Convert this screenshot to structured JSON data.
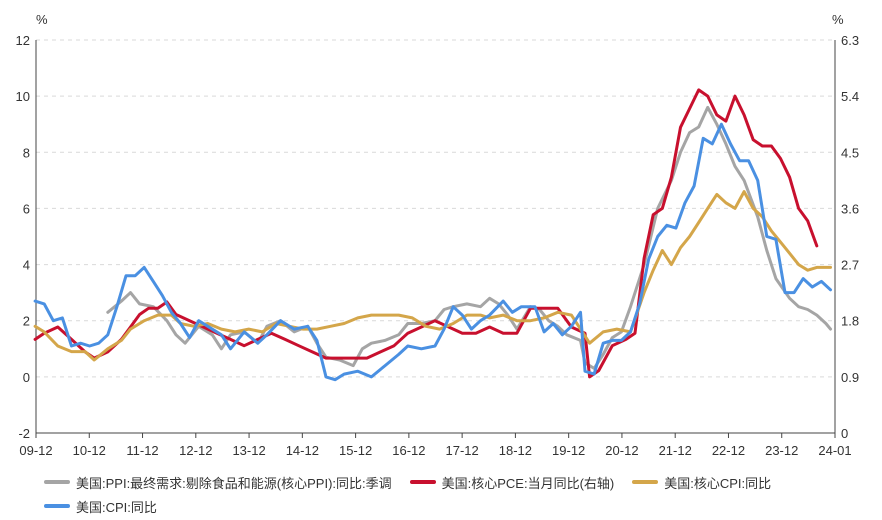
{
  "chart_data": {
    "type": "line",
    "y_left_unit": "%",
    "y_right_unit": "%",
    "y_left_ticks": [
      "-2",
      "0",
      "2",
      "4",
      "6",
      "8",
      "10",
      "12"
    ],
    "y_right_ticks": [
      "0",
      "0.9",
      "1.8",
      "2.7",
      "3.6",
      "4.5",
      "5.4",
      "6.3"
    ],
    "ylim_left": [
      -2,
      12
    ],
    "ylim_right": [
      0,
      6.3
    ],
    "x_ticks": [
      "09-12",
      "10-12",
      "11-12",
      "12-12",
      "13-12",
      "14-12",
      "15-12",
      "16-12",
      "17-12",
      "18-12",
      "19-12",
      "20-12",
      "21-12",
      "22-12",
      "23-12",
      "24-01"
    ],
    "grid": "horizontal dashed",
    "series": [
      {
        "name": "美国:PPI:最终需求:剔除食品和能源(核心PPI):同比:季调",
        "axis": "left",
        "color": "#a5a5a5",
        "points": [
          [
            2011.5,
            2.3
          ],
          [
            2011.8,
            2.7
          ],
          [
            2012.0,
            3.0
          ],
          [
            2012.2,
            2.6
          ],
          [
            2012.5,
            2.5
          ],
          [
            2012.8,
            2.0
          ],
          [
            2013.0,
            1.5
          ],
          [
            2013.2,
            1.2
          ],
          [
            2013.5,
            1.8
          ],
          [
            2013.8,
            1.5
          ],
          [
            2014.0,
            1.0
          ],
          [
            2014.2,
            1.5
          ],
          [
            2014.5,
            1.6
          ],
          [
            2014.8,
            1.2
          ],
          [
            2015.0,
            1.8
          ],
          [
            2015.3,
            2.0
          ],
          [
            2015.6,
            1.6
          ],
          [
            2015.9,
            1.8
          ],
          [
            2016.1,
            1.2
          ],
          [
            2016.3,
            0.7
          ],
          [
            2016.6,
            0.6
          ],
          [
            2016.9,
            0.4
          ],
          [
            2017.1,
            1.0
          ],
          [
            2017.3,
            1.2
          ],
          [
            2017.6,
            1.3
          ],
          [
            2017.9,
            1.5
          ],
          [
            2018.1,
            1.9
          ],
          [
            2018.4,
            1.9
          ],
          [
            2018.7,
            2.0
          ],
          [
            2018.9,
            2.4
          ],
          [
            2019.1,
            2.5
          ],
          [
            2019.4,
            2.6
          ],
          [
            2019.7,
            2.5
          ],
          [
            2019.9,
            2.8
          ],
          [
            2020.1,
            2.6
          ],
          [
            2020.3,
            2.2
          ],
          [
            2020.5,
            1.7
          ],
          [
            2020.8,
            2.5
          ],
          [
            2021.0,
            2.4
          ],
          [
            2021.2,
            2.0
          ],
          [
            2021.4,
            1.8
          ],
          [
            2021.6,
            1.5
          ],
          [
            2021.9,
            1.3
          ],
          [
            2022.0,
            0.5
          ],
          [
            2022.2,
            0.3
          ],
          [
            2022.4,
            0.8
          ],
          [
            2022.6,
            1.4
          ],
          [
            2022.8,
            1.6
          ],
          [
            2023.0,
            2.5
          ],
          [
            2023.3,
            4.0
          ],
          [
            2023.6,
            6.0
          ],
          [
            2023.9,
            7.0
          ],
          [
            2024.1,
            8.0
          ],
          [
            2024.3,
            8.7
          ],
          [
            2024.5,
            8.9
          ],
          [
            2024.7,
            9.6
          ],
          [
            2024.9,
            9.0
          ],
          [
            2025.1,
            8.3
          ],
          [
            2025.3,
            7.5
          ],
          [
            2025.5,
            7.0
          ],
          [
            2025.8,
            5.7
          ],
          [
            2026.0,
            4.5
          ],
          [
            2026.2,
            3.5
          ],
          [
            2026.5,
            2.8
          ],
          [
            2026.7,
            2.5
          ],
          [
            2026.9,
            2.4
          ],
          [
            2027.1,
            2.2
          ],
          [
            2027.3,
            1.9
          ],
          [
            2027.4,
            1.7
          ]
        ]
      },
      {
        "name": "美国:核心PCE:当月同比(右轴)",
        "axis": "right",
        "color": "#c8102e",
        "points": [
          [
            2009.9,
            1.5
          ],
          [
            2010.1,
            1.6
          ],
          [
            2010.4,
            1.7
          ],
          [
            2010.7,
            1.5
          ],
          [
            2011.0,
            1.3
          ],
          [
            2011.2,
            1.2
          ],
          [
            2011.5,
            1.3
          ],
          [
            2011.8,
            1.5
          ],
          [
            2012.0,
            1.7
          ],
          [
            2012.2,
            1.9
          ],
          [
            2012.4,
            2.0
          ],
          [
            2012.6,
            2.0
          ],
          [
            2012.8,
            2.1
          ],
          [
            2013.0,
            1.9
          ],
          [
            2013.3,
            1.8
          ],
          [
            2013.6,
            1.7
          ],
          [
            2013.9,
            1.6
          ],
          [
            2014.2,
            1.5
          ],
          [
            2014.5,
            1.4
          ],
          [
            2014.8,
            1.5
          ],
          [
            2015.1,
            1.6
          ],
          [
            2015.4,
            1.5
          ],
          [
            2015.7,
            1.4
          ],
          [
            2016.0,
            1.3
          ],
          [
            2016.3,
            1.2
          ],
          [
            2016.6,
            1.2
          ],
          [
            2016.9,
            1.2
          ],
          [
            2017.2,
            1.2
          ],
          [
            2017.5,
            1.3
          ],
          [
            2017.8,
            1.4
          ],
          [
            2018.1,
            1.6
          ],
          [
            2018.4,
            1.7
          ],
          [
            2018.7,
            1.8
          ],
          [
            2019.0,
            1.7
          ],
          [
            2019.3,
            1.6
          ],
          [
            2019.6,
            1.6
          ],
          [
            2019.9,
            1.7
          ],
          [
            2020.2,
            1.6
          ],
          [
            2020.5,
            1.6
          ],
          [
            2020.8,
            2.0
          ],
          [
            2021.1,
            2.0
          ],
          [
            2021.4,
            2.0
          ],
          [
            2021.7,
            1.7
          ],
          [
            2022.0,
            1.6
          ],
          [
            2022.1,
            0.9
          ],
          [
            2022.3,
            1.0
          ],
          [
            2022.6,
            1.4
          ],
          [
            2022.9,
            1.5
          ],
          [
            2023.1,
            1.6
          ],
          [
            2023.3,
            2.8
          ],
          [
            2023.5,
            3.5
          ],
          [
            2023.7,
            3.6
          ],
          [
            2023.9,
            4.1
          ],
          [
            2024.1,
            4.9
          ],
          [
            2024.3,
            5.2
          ],
          [
            2024.5,
            5.5
          ],
          [
            2024.7,
            5.4
          ],
          [
            2024.9,
            5.1
          ],
          [
            2025.1,
            5.0
          ],
          [
            2025.3,
            5.4
          ],
          [
            2025.5,
            5.1
          ],
          [
            2025.7,
            4.7
          ],
          [
            2025.9,
            4.6
          ],
          [
            2026.1,
            4.6
          ],
          [
            2026.3,
            4.4
          ],
          [
            2026.5,
            4.1
          ],
          [
            2026.7,
            3.6
          ],
          [
            2026.9,
            3.4
          ],
          [
            2027.1,
            3.0
          ]
        ]
      },
      {
        "name": "美国:核心CPI:同比",
        "axis": "left",
        "color": "#d4a64a",
        "points": [
          [
            2009.9,
            1.8
          ],
          [
            2010.1,
            1.6
          ],
          [
            2010.4,
            1.1
          ],
          [
            2010.7,
            0.9
          ],
          [
            2011.0,
            0.9
          ],
          [
            2011.2,
            0.6
          ],
          [
            2011.5,
            1.0
          ],
          [
            2011.8,
            1.3
          ],
          [
            2012.0,
            1.7
          ],
          [
            2012.3,
            2.0
          ],
          [
            2012.6,
            2.2
          ],
          [
            2012.9,
            2.2
          ],
          [
            2013.1,
            1.9
          ],
          [
            2013.4,
            1.8
          ],
          [
            2013.7,
            1.9
          ],
          [
            2014.0,
            1.7
          ],
          [
            2014.3,
            1.6
          ],
          [
            2014.6,
            1.7
          ],
          [
            2014.9,
            1.6
          ],
          [
            2015.2,
            1.9
          ],
          [
            2015.5,
            1.8
          ],
          [
            2015.8,
            1.7
          ],
          [
            2016.1,
            1.7
          ],
          [
            2016.4,
            1.8
          ],
          [
            2016.7,
            1.9
          ],
          [
            2017.0,
            2.1
          ],
          [
            2017.3,
            2.2
          ],
          [
            2017.6,
            2.2
          ],
          [
            2017.9,
            2.2
          ],
          [
            2018.2,
            2.1
          ],
          [
            2018.5,
            1.8
          ],
          [
            2018.8,
            1.7
          ],
          [
            2019.1,
            1.9
          ],
          [
            2019.4,
            2.2
          ],
          [
            2019.7,
            2.2
          ],
          [
            2019.9,
            2.1
          ],
          [
            2020.2,
            2.2
          ],
          [
            2020.5,
            2.0
          ],
          [
            2020.8,
            2.0
          ],
          [
            2021.1,
            2.1
          ],
          [
            2021.4,
            2.3
          ],
          [
            2021.7,
            2.2
          ],
          [
            2021.9,
            1.7
          ],
          [
            2022.1,
            1.2
          ],
          [
            2022.4,
            1.6
          ],
          [
            2022.7,
            1.7
          ],
          [
            2023.0,
            1.6
          ],
          [
            2023.3,
            3.0
          ],
          [
            2023.5,
            3.8
          ],
          [
            2023.7,
            4.5
          ],
          [
            2023.9,
            4.0
          ],
          [
            2024.1,
            4.6
          ],
          [
            2024.3,
            5.0
          ],
          [
            2024.5,
            5.5
          ],
          [
            2024.7,
            6.0
          ],
          [
            2024.9,
            6.5
          ],
          [
            2025.1,
            6.2
          ],
          [
            2025.3,
            6.0
          ],
          [
            2025.5,
            6.6
          ],
          [
            2025.7,
            6.0
          ],
          [
            2025.9,
            5.7
          ],
          [
            2026.1,
            5.2
          ],
          [
            2026.3,
            4.8
          ],
          [
            2026.5,
            4.4
          ],
          [
            2026.7,
            4.0
          ],
          [
            2026.9,
            3.8
          ],
          [
            2027.1,
            3.9
          ],
          [
            2027.4,
            3.9
          ]
        ]
      },
      {
        "name": "美国:CPI:同比",
        "axis": "left",
        "color": "#4a90e2",
        "points": [
          [
            2009.9,
            2.7
          ],
          [
            2010.1,
            2.6
          ],
          [
            2010.3,
            2.0
          ],
          [
            2010.5,
            2.1
          ],
          [
            2010.7,
            1.1
          ],
          [
            2010.9,
            1.2
          ],
          [
            2011.1,
            1.1
          ],
          [
            2011.3,
            1.2
          ],
          [
            2011.5,
            1.5
          ],
          [
            2011.7,
            2.5
          ],
          [
            2011.9,
            3.6
          ],
          [
            2012.1,
            3.6
          ],
          [
            2012.3,
            3.9
          ],
          [
            2012.5,
            3.4
          ],
          [
            2012.7,
            2.9
          ],
          [
            2012.9,
            2.3
          ],
          [
            2013.1,
            1.9
          ],
          [
            2013.3,
            1.4
          ],
          [
            2013.5,
            2.0
          ],
          [
            2013.7,
            1.8
          ],
          [
            2014.0,
            1.5
          ],
          [
            2014.2,
            1.0
          ],
          [
            2014.5,
            1.6
          ],
          [
            2014.8,
            1.2
          ],
          [
            2015.0,
            1.5
          ],
          [
            2015.3,
            2.0
          ],
          [
            2015.6,
            1.7
          ],
          [
            2015.9,
            1.8
          ],
          [
            2016.1,
            1.3
          ],
          [
            2016.3,
            0.0
          ],
          [
            2016.5,
            -0.1
          ],
          [
            2016.7,
            0.1
          ],
          [
            2017.0,
            0.2
          ],
          [
            2017.3,
            0.0
          ],
          [
            2017.6,
            0.4
          ],
          [
            2017.9,
            0.8
          ],
          [
            2018.1,
            1.1
          ],
          [
            2018.4,
            1.0
          ],
          [
            2018.7,
            1.1
          ],
          [
            2018.9,
            1.7
          ],
          [
            2019.1,
            2.5
          ],
          [
            2019.3,
            2.2
          ],
          [
            2019.5,
            1.7
          ],
          [
            2019.7,
            2.0
          ],
          [
            2019.9,
            2.2
          ],
          [
            2020.2,
            2.7
          ],
          [
            2020.4,
            2.3
          ],
          [
            2020.6,
            2.5
          ],
          [
            2020.9,
            2.5
          ],
          [
            2021.1,
            1.6
          ],
          [
            2021.3,
            1.9
          ],
          [
            2021.5,
            1.5
          ],
          [
            2021.7,
            1.8
          ],
          [
            2021.9,
            2.3
          ],
          [
            2022.0,
            0.2
          ],
          [
            2022.2,
            0.1
          ],
          [
            2022.4,
            1.2
          ],
          [
            2022.6,
            1.3
          ],
          [
            2022.8,
            1.3
          ],
          [
            2023.0,
            1.6
          ],
          [
            2023.2,
            2.6
          ],
          [
            2023.4,
            4.2
          ],
          [
            2023.6,
            5.0
          ],
          [
            2023.8,
            5.4
          ],
          [
            2024.0,
            5.3
          ],
          [
            2024.2,
            6.2
          ],
          [
            2024.4,
            6.8
          ],
          [
            2024.6,
            8.5
          ],
          [
            2024.8,
            8.3
          ],
          [
            2025.0,
            9.0
          ],
          [
            2025.2,
            8.3
          ],
          [
            2025.4,
            7.7
          ],
          [
            2025.6,
            7.7
          ],
          [
            2025.8,
            7.0
          ],
          [
            2026.0,
            5.0
          ],
          [
            2026.2,
            4.9
          ],
          [
            2026.4,
            3.0
          ],
          [
            2026.6,
            3.0
          ],
          [
            2026.8,
            3.5
          ],
          [
            2027.0,
            3.2
          ],
          [
            2027.2,
            3.4
          ],
          [
            2027.4,
            3.1
          ]
        ]
      }
    ]
  }
}
